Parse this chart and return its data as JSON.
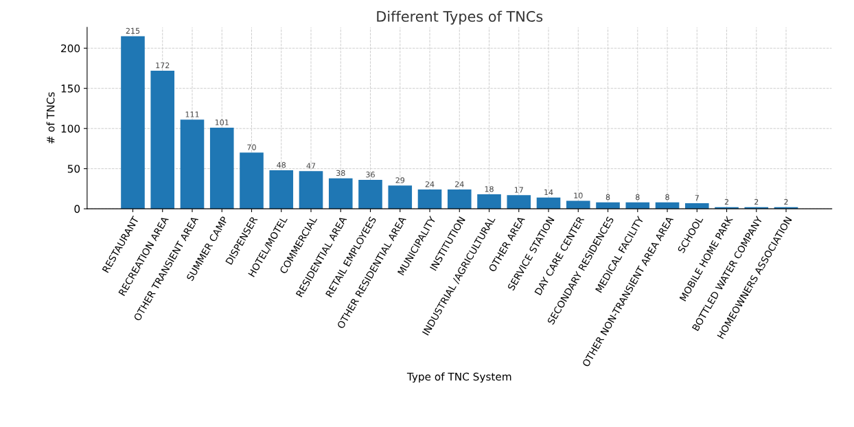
{
  "chart_data": {
    "type": "bar",
    "title": "Different Types of TNCs",
    "xlabel": "Type of TNC System",
    "ylabel": "# of TNCs",
    "categories": [
      "RESTAURANT",
      "RECREATION AREA",
      "OTHER TRANSIENT AREA",
      "SUMMER CAMP",
      "DISPENSER",
      "HOTEL/MOTEL",
      "COMMERCIAL",
      "RESIDENTIAL AREA",
      "RETAIL EMPLOYEES",
      "OTHER RESIDENTIAL AREA",
      "MUNICIPALITY",
      "INSTITUTION",
      "INDUSTRIAL /AGRICULTURAL",
      "OTHER AREA",
      "SERVICE STATION",
      "DAY CARE CENTER",
      "SECONDARY RESIDENCES",
      "MEDICAL FACILITY",
      "OTHER NON-TRANSIENT AREA AREA",
      "SCHOOL",
      "MOBILE HOME PARK",
      "BOTTLED WATER COMPANY",
      "HOMEOWNERS ASSOCIATION"
    ],
    "values": [
      215,
      172,
      111,
      101,
      70,
      48,
      47,
      38,
      36,
      29,
      24,
      24,
      18,
      17,
      14,
      10,
      8,
      8,
      8,
      7,
      2,
      2,
      2
    ],
    "color": "#1f77b4",
    "ylim": [
      0,
      226
    ],
    "yticks": [
      0,
      50,
      100,
      150,
      200
    ],
    "grid": true,
    "data_labels": true
  }
}
